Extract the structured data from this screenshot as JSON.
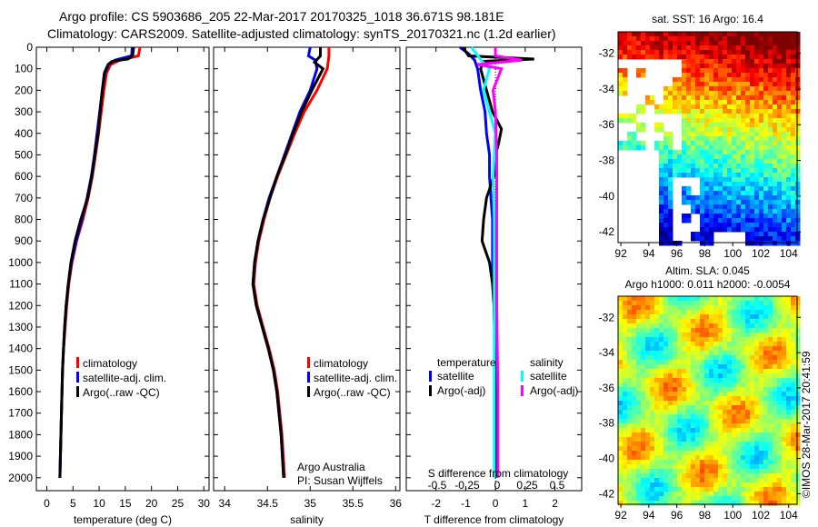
{
  "title": {
    "line1": "Argo profile: CS 5903686_205 22-Mar-2017 20170325_1018 36.671S 98.181E",
    "line2": "Climatology: CARS2009. Satellite-adjusted climatology: synTS_20170321.nc (1.2d earlier)"
  },
  "colors": {
    "climatology": "#ff0000",
    "satellite": "#0000ff",
    "argo": "#000000",
    "sal_satellite": "#00ffff",
    "sal_argo": "#ff00ff"
  },
  "chart_data": [
    {
      "type": "line",
      "xlabel": "temperature (deg C)",
      "ylabel": "",
      "xlim": [
        -2,
        31
      ],
      "ylim": [
        2060,
        0
      ],
      "xticks": [
        "0",
        "5",
        "10",
        "15",
        "20",
        "25",
        "30"
      ],
      "yticks": [
        "0",
        "100",
        "200",
        "300",
        "400",
        "500",
        "600",
        "700",
        "800",
        "900",
        "1000",
        "1100",
        "1200",
        "1300",
        "1400",
        "1500",
        "1600",
        "1700",
        "1800",
        "1900",
        "2000"
      ],
      "legend": [
        "climatology",
        "satellite-adj. clim.",
        "Argo(..raw -QC)"
      ],
      "series": [
        {
          "name": "climatology",
          "color": "#ff0000",
          "points": [
            [
              0,
              17.8
            ],
            [
              40,
              17.5
            ],
            [
              60,
              14
            ],
            [
              80,
              12.2
            ],
            [
              120,
              11.4
            ],
            [
              200,
              10.9
            ],
            [
              300,
              10.4
            ],
            [
              400,
              9.9
            ],
            [
              500,
              9.3
            ],
            [
              600,
              8.7
            ],
            [
              700,
              7.9
            ],
            [
              800,
              6.9
            ],
            [
              900,
              5.7
            ],
            [
              1000,
              4.8
            ],
            [
              1100,
              4.2
            ],
            [
              1200,
              3.8
            ],
            [
              1300,
              3.5
            ],
            [
              1400,
              3.2
            ],
            [
              1500,
              3.0
            ],
            [
              1700,
              2.8
            ],
            [
              2000,
              2.5
            ]
          ]
        },
        {
          "name": "satellite-adj. clim.",
          "color": "#0000ff",
          "points": [
            [
              0,
              16.3
            ],
            [
              40,
              16.2
            ],
            [
              60,
              13
            ],
            [
              80,
              11.8
            ],
            [
              120,
              11.1
            ],
            [
              200,
              10.6
            ],
            [
              300,
              10.1
            ],
            [
              400,
              9.6
            ],
            [
              500,
              9.1
            ],
            [
              600,
              8.5
            ],
            [
              700,
              7.7
            ],
            [
              800,
              6.7
            ],
            [
              900,
              5.6
            ],
            [
              1000,
              4.7
            ],
            [
              1100,
              4.1
            ],
            [
              1200,
              3.7
            ],
            [
              1300,
              3.4
            ],
            [
              1400,
              3.2
            ],
            [
              1500,
              3.0
            ],
            [
              1700,
              2.8
            ],
            [
              2000,
              2.5
            ]
          ]
        },
        {
          "name": "Argo(..raw -QC)",
          "color": "#000000",
          "points": [
            [
              0,
              16.6
            ],
            [
              40,
              16.4
            ],
            [
              55,
              15.5
            ],
            [
              65,
              12.5
            ],
            [
              80,
              11.7
            ],
            [
              120,
              11.0
            ],
            [
              200,
              10.6
            ],
            [
              300,
              10.2
            ],
            [
              400,
              9.8
            ],
            [
              500,
              9.2
            ],
            [
              600,
              8.6
            ],
            [
              700,
              7.8
            ],
            [
              800,
              6.5
            ],
            [
              900,
              5.4
            ],
            [
              1000,
              4.6
            ],
            [
              1100,
              4.1
            ],
            [
              1200,
              3.7
            ],
            [
              1300,
              3.4
            ],
            [
              1400,
              3.2
            ],
            [
              1500,
              3.0
            ],
            [
              1700,
              2.8
            ],
            [
              2000,
              2.5
            ]
          ]
        }
      ]
    },
    {
      "type": "line",
      "xlabel": "salinity",
      "xlim": [
        33.87,
        36.05
      ],
      "ylim": [
        2060,
        0
      ],
      "xticks": [
        "34",
        "34.5",
        "35",
        "35.5",
        "36"
      ],
      "legend": [
        "climatology",
        "satellite-adj. clim.",
        "Argo(..raw -QC)"
      ],
      "annotation": [
        "Argo Australia",
        "PI: Susan Wijffels"
      ],
      "series": [
        {
          "name": "climatology",
          "color": "#ff0000",
          "points": [
            [
              0,
              35.22
            ],
            [
              40,
              35.22
            ],
            [
              100,
              35.2
            ],
            [
              200,
              35.08
            ],
            [
              300,
              34.93
            ],
            [
              400,
              34.82
            ],
            [
              500,
              34.72
            ],
            [
              600,
              34.62
            ],
            [
              700,
              34.53
            ],
            [
              800,
              34.46
            ],
            [
              900,
              34.4
            ],
            [
              1000,
              34.36
            ],
            [
              1100,
              34.34
            ],
            [
              1200,
              34.38
            ],
            [
              1300,
              34.45
            ],
            [
              1400,
              34.52
            ],
            [
              1500,
              34.58
            ],
            [
              1600,
              34.62
            ],
            [
              1800,
              34.67
            ],
            [
              2000,
              34.7
            ]
          ]
        },
        {
          "name": "satellite-adj. clim.",
          "color": "#0000ff",
          "points": [
            [
              0,
              35.0
            ],
            [
              40,
              34.98
            ],
            [
              60,
              35.06
            ],
            [
              100,
              35.08
            ],
            [
              200,
              35.0
            ],
            [
              300,
              34.88
            ],
            [
              400,
              34.79
            ],
            [
              500,
              34.7
            ],
            [
              600,
              34.61
            ],
            [
              700,
              34.52
            ],
            [
              800,
              34.45
            ],
            [
              900,
              34.39
            ],
            [
              1000,
              34.35
            ],
            [
              1100,
              34.33
            ],
            [
              1200,
              34.37
            ],
            [
              1300,
              34.44
            ],
            [
              1400,
              34.51
            ],
            [
              1500,
              34.57
            ],
            [
              1600,
              34.61
            ],
            [
              1800,
              34.66
            ],
            [
              2000,
              34.69
            ]
          ]
        },
        {
          "name": "Argo(..raw -QC)",
          "color": "#000000",
          "points": [
            [
              0,
              35.12
            ],
            [
              40,
              35.12
            ],
            [
              70,
              35.05
            ],
            [
              100,
              35.15
            ],
            [
              200,
              35.02
            ],
            [
              300,
              34.9
            ],
            [
              400,
              34.8
            ],
            [
              500,
              34.71
            ],
            [
              600,
              34.61
            ],
            [
              700,
              34.53
            ],
            [
              800,
              34.45
            ],
            [
              900,
              34.39
            ],
            [
              1000,
              34.35
            ],
            [
              1100,
              34.33
            ],
            [
              1200,
              34.37
            ],
            [
              1300,
              34.44
            ],
            [
              1400,
              34.51
            ],
            [
              1500,
              34.57
            ],
            [
              1600,
              34.61
            ],
            [
              1800,
              34.66
            ],
            [
              2000,
              34.69
            ]
          ]
        }
      ]
    },
    {
      "type": "line",
      "xlabel": "T difference from climatology",
      "xlabel_top": "S difference from climatology",
      "xlim": [
        -3.0,
        2.9
      ],
      "ylim": [
        2060,
        0
      ],
      "xticks": [
        "-2",
        "-1",
        "0",
        "1",
        "2"
      ],
      "xticks_top": [
        "-0.5",
        "-0.25",
        "0",
        "0.25",
        "0.5"
      ],
      "legend_temperature": {
        "heading": "temperature",
        "items": [
          "satellite",
          "Argo(-adj)"
        ]
      },
      "legend_salinity": {
        "heading": "salinity",
        "items": [
          "satellite",
          "Argo(-adj)"
        ]
      },
      "series": [
        {
          "name": "temperature satellite",
          "color": "#0000ff",
          "units": "T",
          "points": [
            [
              0,
              -1.2
            ],
            [
              30,
              -0.9
            ],
            [
              60,
              -0.7
            ],
            [
              100,
              -0.6
            ],
            [
              200,
              -0.5
            ],
            [
              300,
              -0.35
            ],
            [
              400,
              -0.3
            ],
            [
              500,
              -0.2
            ],
            [
              600,
              -0.2
            ],
            [
              700,
              -0.15
            ],
            [
              800,
              -0.1
            ],
            [
              1000,
              -0.1
            ],
            [
              1200,
              -0.05
            ],
            [
              1500,
              0
            ],
            [
              2000,
              0
            ]
          ]
        },
        {
          "name": "temperature Argo(-adj)",
          "color": "#000000",
          "units": "T",
          "points": [
            [
              0,
              -1.1
            ],
            [
              40,
              -0.9
            ],
            [
              55,
              1.3
            ],
            [
              65,
              -0.4
            ],
            [
              100,
              -0.5
            ],
            [
              200,
              -0.3
            ],
            [
              300,
              -0.1
            ],
            [
              380,
              0.2
            ],
            [
              450,
              0.1
            ],
            [
              500,
              0.0
            ],
            [
              600,
              -0.05
            ],
            [
              700,
              -0.3
            ],
            [
              800,
              -0.4
            ],
            [
              900,
              -0.45
            ],
            [
              1000,
              -0.2
            ],
            [
              1100,
              -0.1
            ],
            [
              1200,
              -0.05
            ],
            [
              1500,
              0
            ],
            [
              2000,
              0
            ]
          ]
        },
        {
          "name": "salinity satellite",
          "color": "#00ffff",
          "units": "S",
          "points": [
            [
              0,
              -0.2
            ],
            [
              30,
              -0.16
            ],
            [
              60,
              -0.12
            ],
            [
              100,
              -0.05
            ],
            [
              200,
              -0.1
            ],
            [
              300,
              -0.05
            ],
            [
              400,
              0
            ],
            [
              600,
              -0.02
            ],
            [
              800,
              -0.01
            ],
            [
              1200,
              -0.01
            ],
            [
              1600,
              -0.01
            ],
            [
              2000,
              -0.01
            ]
          ]
        },
        {
          "name": "salinity Argo(-adj)",
          "color": "#ff00ff",
          "units": "S",
          "points": [
            [
              0,
              0.0
            ],
            [
              40,
              0.0
            ],
            [
              60,
              0.22
            ],
            [
              80,
              -0.15
            ],
            [
              100,
              0.05
            ],
            [
              200,
              -0.02
            ],
            [
              300,
              0.0
            ],
            [
              500,
              0.01
            ],
            [
              800,
              0.01
            ],
            [
              1200,
              0.01
            ],
            [
              1600,
              0.02
            ],
            [
              2000,
              0.02
            ]
          ]
        }
      ]
    },
    {
      "type": "heatmap",
      "title": "sat. SST: 16 Argo: 16.4",
      "xlim": [
        91.8,
        104.6
      ],
      "ylim": [
        -42.6,
        -30.8
      ],
      "xticks": [
        "92",
        "94",
        "96",
        "98",
        "100",
        "102",
        "104"
      ],
      "yticks": [
        "-32",
        "-34",
        "-36",
        "-38",
        "-40",
        "-42"
      ]
    },
    {
      "type": "heatmap",
      "title_line1": "Altim. SLA: 0.045",
      "title_line2": "Argo h1000: 0.011 h2000: -0.0054",
      "xlim": [
        91.8,
        104.6
      ],
      "ylim": [
        -42.6,
        -30.8
      ],
      "xticks": [
        "92",
        "94",
        "96",
        "98",
        "100",
        "102",
        "104"
      ],
      "yticks": [
        "-32",
        "-34",
        "-36",
        "-38",
        "-40",
        "-42"
      ]
    }
  ],
  "footer": {
    "credit": "©IMOS 28-Mar-2017 20:41:59"
  }
}
